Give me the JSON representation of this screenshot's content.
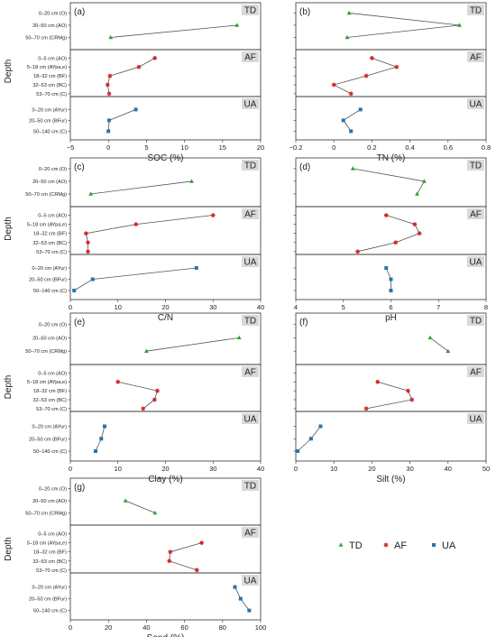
{
  "legend": {
    "entries": [
      {
        "name": "TD",
        "color": "#2ca02c",
        "marker": "triangle"
      },
      {
        "name": "AF",
        "color": "#d62728",
        "marker": "star"
      },
      {
        "name": "UA",
        "color": "#1f77b4",
        "marker": "square"
      }
    ]
  },
  "ylabel": "Depth",
  "colors": {
    "line": "#555555",
    "tag_bg": "#d9d9d9",
    "frame": "#333333"
  },
  "depth_labels": {
    "TD": [
      "0–20 cm (O)",
      "20–50 cm (AO)",
      "50–70 cm (CRMg)"
    ],
    "AF": [
      "0–5 cm (AO)",
      "5–18 cm (AYpa,e)",
      "18–32 cm (BF)",
      "32–53 cm (BC)",
      "53–70 cm (C)"
    ],
    "UA": [
      "0–20 cm (AYur)",
      "20–50 cm (BFur)",
      "50–140 cm (C)"
    ]
  },
  "chart_data": [
    {
      "letter": "(a)",
      "type": "line",
      "xlabel": "SOC (%)",
      "xlim": [
        -5,
        20
      ],
      "xticks": [
        -5,
        0,
        5,
        10,
        15,
        20
      ],
      "xtick_labels": [
        "−5",
        "0",
        "5",
        "10",
        "15",
        "20"
      ],
      "show_depth_labels": true,
      "series": [
        {
          "name": "TD",
          "values": [
            null,
            16.9,
            0.3
          ]
        },
        {
          "name": "AF",
          "values": [
            6.1,
            4.0,
            0.2,
            -0.1,
            0.1
          ]
        },
        {
          "name": "UA",
          "values": [
            3.6,
            0.1,
            0.0
          ]
        }
      ]
    },
    {
      "letter": "(b)",
      "type": "line",
      "xlabel": "TN (%)",
      "xlim": [
        -0.2,
        0.8
      ],
      "xticks": [
        -0.2,
        0,
        0.2,
        0.4,
        0.6,
        0.8
      ],
      "xtick_labels": [
        "−0.2",
        "0",
        "0.2",
        "0.4",
        "0.6",
        "0.8"
      ],
      "show_depth_labels": false,
      "series": [
        {
          "name": "TD",
          "values": [
            0.08,
            0.66,
            0.07
          ]
        },
        {
          "name": "AF",
          "values": [
            0.2,
            0.33,
            0.17,
            0.0,
            0.09
          ]
        },
        {
          "name": "UA",
          "values": [
            0.14,
            0.05,
            0.09
          ]
        }
      ]
    },
    {
      "letter": "(c)",
      "type": "line",
      "xlabel": "C/N",
      "xlim": [
        0,
        40
      ],
      "xticks": [
        0,
        10,
        20,
        30,
        40
      ],
      "xtick_labels": [
        "0",
        "10",
        "20",
        "30",
        "40"
      ],
      "show_depth_labels": true,
      "series": [
        {
          "name": "TD",
          "values": [
            null,
            25.5,
            4.3
          ]
        },
        {
          "name": "AF",
          "values": [
            30.0,
            13.8,
            3.3,
            3.7,
            3.7
          ]
        },
        {
          "name": "UA",
          "values": [
            26.5,
            4.7,
            0.8
          ]
        }
      ]
    },
    {
      "letter": "(d)",
      "type": "line",
      "xlabel": "pH",
      "xlim": [
        4,
        8
      ],
      "xticks": [
        4,
        5,
        6,
        7,
        8
      ],
      "xtick_labels": [
        "4",
        "5",
        "6",
        "7",
        "8"
      ],
      "show_depth_labels": false,
      "series": [
        {
          "name": "TD",
          "values": [
            5.2,
            6.7,
            6.55
          ]
        },
        {
          "name": "AF",
          "values": [
            5.9,
            6.5,
            6.6,
            6.1,
            5.3
          ]
        },
        {
          "name": "UA",
          "values": [
            5.9,
            6.0,
            6.0
          ]
        }
      ]
    },
    {
      "letter": "(e)",
      "type": "line",
      "xlabel": "Clay (%)",
      "xlim": [
        0,
        40
      ],
      "xticks": [
        0,
        10,
        20,
        30,
        40
      ],
      "xtick_labels": [
        "0",
        "10",
        "20",
        "30",
        "40"
      ],
      "show_depth_labels": true,
      "series": [
        {
          "name": "TD",
          "values": [
            null,
            35.5,
            16.0
          ]
        },
        {
          "name": "AF",
          "values": [
            null,
            10.0,
            18.3,
            17.7,
            15.3
          ]
        },
        {
          "name": "UA",
          "values": [
            7.2,
            6.5,
            5.3
          ]
        }
      ]
    },
    {
      "letter": "(f)",
      "type": "line",
      "xlabel": "Silt (%)",
      "xlim": [
        0,
        50
      ],
      "xticks": [
        0,
        10,
        20,
        30,
        40,
        50
      ],
      "xtick_labels": [
        "0",
        "10",
        "20",
        "30",
        "40",
        "50"
      ],
      "show_depth_labels": false,
      "series": [
        {
          "name": "TD",
          "values": [
            null,
            35.3,
            40.0
          ]
        },
        {
          "name": "AF",
          "values": [
            null,
            21.5,
            29.5,
            30.5,
            18.5
          ]
        },
        {
          "name": "UA",
          "values": [
            6.5,
            4.0,
            0.5
          ]
        }
      ]
    },
    {
      "letter": "(g)",
      "type": "line",
      "xlabel": "Sand (%)",
      "xlim": [
        0,
        100
      ],
      "xticks": [
        0,
        20,
        40,
        60,
        80,
        100
      ],
      "xtick_labels": [
        "0",
        "20",
        "40",
        "60",
        "80",
        "100"
      ],
      "show_depth_labels": true,
      "series": [
        {
          "name": "TD",
          "values": [
            null,
            29.0,
            44.5
          ]
        },
        {
          "name": "AF",
          "values": [
            null,
            69.0,
            52.5,
            52.0,
            66.5
          ]
        },
        {
          "name": "UA",
          "values": [
            86.5,
            89.5,
            94.0
          ]
        }
      ]
    }
  ]
}
